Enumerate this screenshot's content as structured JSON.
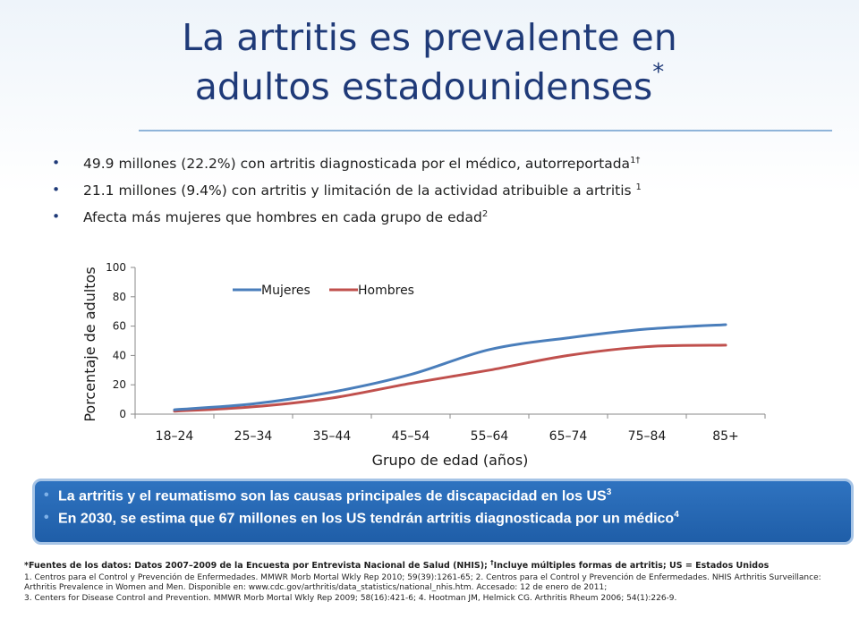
{
  "slide": {
    "title_line1": "La artritis es prevalente en",
    "title_line2": "adultos estadounidenses",
    "title_mark": "*"
  },
  "bullets": [
    {
      "text": "49.9 millones (22.2%) con artritis diagnosticada por el médico, autorreportada",
      "sup": "1†"
    },
    {
      "text": "21.1 millones (9.4%) con artritis y limitación de la actividad atribuible a artritis ",
      "sup": "1"
    },
    {
      "text": "Afecta más mujeres que hombres en cada grupo de edad",
      "sup": "2"
    }
  ],
  "chart_data": {
    "type": "line",
    "xlabel": "Grupo de edad (años)",
    "ylabel": "Porcentaje de adultos",
    "categories": [
      "18–24",
      "25–34",
      "35–44",
      "45–54",
      "55–64",
      "65–74",
      "75–84",
      "85+"
    ],
    "ylim": [
      0,
      100
    ],
    "yticks": [
      0,
      20,
      40,
      60,
      80,
      100
    ],
    "legend_position": "top",
    "grid": false,
    "series": [
      {
        "name": "Mujeres",
        "color": "#4a7ebb",
        "values": [
          3,
          7,
          15,
          27,
          44,
          52,
          58,
          61
        ]
      },
      {
        "name": "Hombres",
        "color": "#c0504d",
        "values": [
          2,
          5,
          11,
          21,
          30,
          40,
          46,
          47
        ]
      }
    ]
  },
  "callout": [
    {
      "text": "La artritis y el reumatismo son las causas principales de discapacidad en los US",
      "sup": "3"
    },
    {
      "text": "En 2030, se estima que 67 millones en los US tendrán artritis diagnosticada por un médico",
      "sup": "4"
    }
  ],
  "footnotes": {
    "sources_part1": "*Fuentes de los datos: Datos 2007–2009 de la Encuesta por Entrevista Nacional de Salud (NHIS); ",
    "sources_dagger": "†",
    "sources_part2": "Incluye múltiples formas de artritis; US = Estados Unidos",
    "ref1": "1. Centros para el Control y Prevención de Enfermedades. MMWR Morb Mortal Wkly Rep 2010; 59(39):1261-65; 2. Centros para el Control y Prevención de Enfermedades. NHIS Arthritis Surveillance: Arthritis Prevalence in Women and Men. Disponible en: www.cdc.gov/arthritis/data_statistics/national_nhis.htm.  Accesado: 12 de enero de 2011;",
    "ref3": "3. Centers for Disease Control and Prevention. MMWR Morb Mortal Wkly Rep 2009; 58(16):421-6; 4. Hootman JM, Helmick CG. Arthritis Rheum 2006; 54(1):226-9."
  }
}
